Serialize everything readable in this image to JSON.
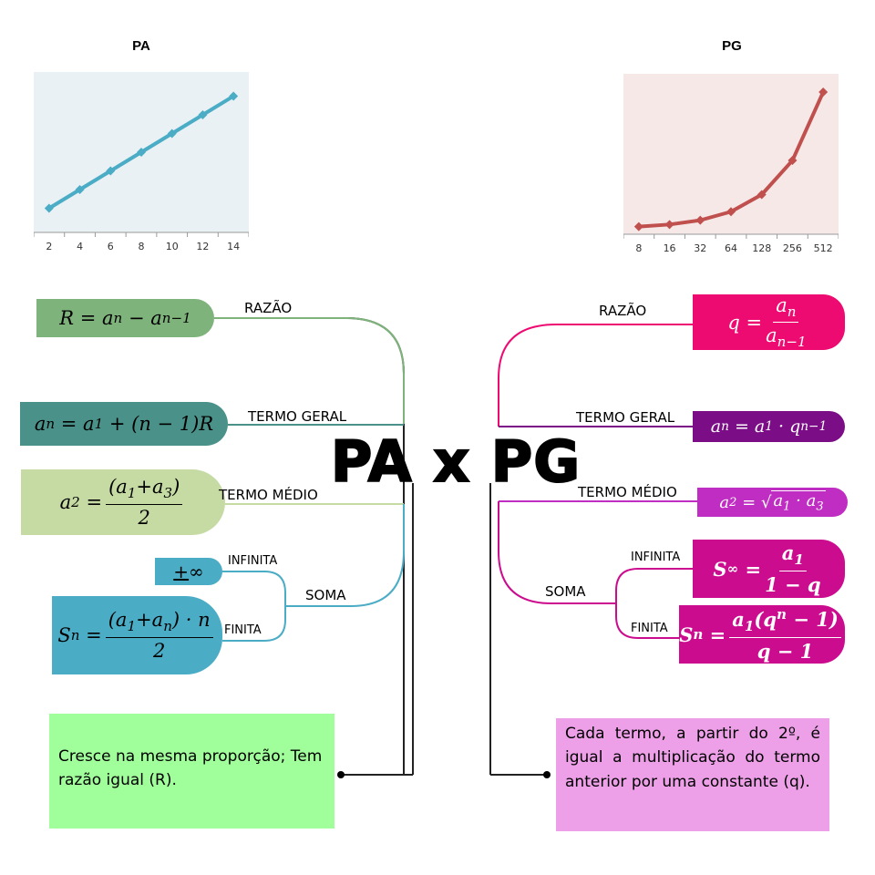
{
  "chart_data": [
    {
      "type": "line",
      "title": "PA",
      "x": [
        2,
        4,
        6,
        8,
        10,
        12,
        14
      ],
      "values": [
        2,
        4,
        6,
        8,
        10,
        12,
        14
      ],
      "tick_labels": [
        "2",
        "4",
        "6",
        "8",
        "10",
        "12",
        "14"
      ],
      "ylim": [
        0,
        16
      ],
      "color": "#4bacc6",
      "background": "#eaf1f5",
      "grid": false
    },
    {
      "type": "line",
      "title": "PG",
      "x": [
        8,
        16,
        32,
        64,
        128,
        256,
        512
      ],
      "values": [
        8,
        16,
        32,
        64,
        128,
        256,
        512
      ],
      "tick_labels": [
        "8",
        "16",
        "32",
        "64",
        "128",
        "256",
        "512"
      ],
      "ylim": [
        0,
        560
      ],
      "color": "#c0504d",
      "background": "#f5e8e7",
      "grid": false
    }
  ],
  "title": "PA x PG",
  "pa": {
    "razao_label": "RAZÃO",
    "termo_geral_label": "TERMO GERAL",
    "termo_medio_label": "TERMO MÉDIO",
    "soma_label": "SOMA",
    "infinita_label": "INFINITA",
    "finita_label": "FINITA",
    "note": "Cresce na mesma proporção; Tem razão igual (R).",
    "colors": {
      "razao": "#7fb37c",
      "termo_geral": "#4a9189",
      "termo_medio": "#c6dba3",
      "soma": "#4bacc6",
      "note": "#a0ff9a"
    }
  },
  "pg": {
    "razao_label": "RAZÃO",
    "termo_geral_label": "TERMO GERAL",
    "termo_medio_label": "TERMO MÉDIO",
    "soma_label": "SOMA",
    "infinita_label": "INFINITA",
    "finita_label": "FINITA",
    "note": "Cada termo, a partir do 2º, é igual a multiplicação do termo anterior por uma constante (q).",
    "colors": {
      "razao": "#ee0b71",
      "termo_geral": "#7b0d86",
      "termo_medio": "#c02dc2",
      "soma": "#cc0c8e",
      "note": "#eda0e8"
    }
  }
}
